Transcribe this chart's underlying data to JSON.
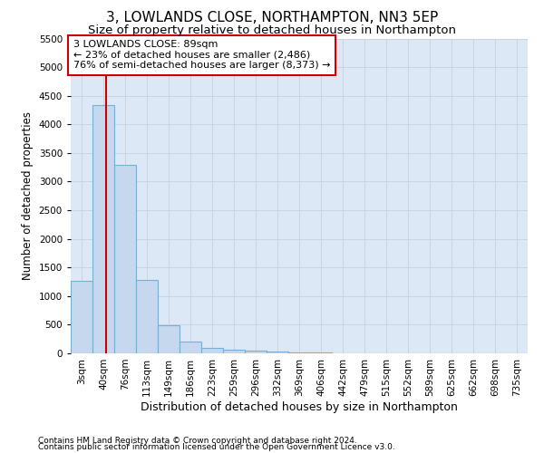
{
  "title1": "3, LOWLANDS CLOSE, NORTHAMPTON, NN3 5EP",
  "title2": "Size of property relative to detached houses in Northampton",
  "xlabel": "Distribution of detached houses by size in Northampton",
  "ylabel": "Number of detached properties",
  "bin_labels": [
    "3sqm",
    "40sqm",
    "76sqm",
    "113sqm",
    "149sqm",
    "186sqm",
    "223sqm",
    "259sqm",
    "296sqm",
    "332sqm",
    "369sqm",
    "406sqm",
    "442sqm",
    "479sqm",
    "515sqm",
    "552sqm",
    "589sqm",
    "625sqm",
    "662sqm",
    "698sqm",
    "735sqm"
  ],
  "bar_values": [
    1270,
    4330,
    3300,
    1280,
    490,
    210,
    90,
    60,
    55,
    30,
    20,
    15,
    0,
    0,
    0,
    0,
    0,
    0,
    0,
    0,
    0
  ],
  "bar_color": "#c5d8ee",
  "bar_edge_color": "#7aafd4",
  "vline_x_idx": 1,
  "annotation_line1": "3 LOWLANDS CLOSE: 89sqm",
  "annotation_line2": "← 23% of detached houses are smaller (2,486)",
  "annotation_line3": "76% of semi-detached houses are larger (8,373) →",
  "annotation_box_color": "#ffffff",
  "annotation_box_edge": "#cc0000",
  "vline_color": "#cc0000",
  "ylim": [
    0,
    5500
  ],
  "yticks": [
    0,
    500,
    1000,
    1500,
    2000,
    2500,
    3000,
    3500,
    4000,
    4500,
    5000,
    5500
  ],
  "grid_color": "#c8d4e0",
  "bg_color": "#dce8f5",
  "footer1": "Contains HM Land Registry data © Crown copyright and database right 2024.",
  "footer2": "Contains public sector information licensed under the Open Government Licence v3.0.",
  "title1_fontsize": 11,
  "title2_fontsize": 9.5,
  "xlabel_fontsize": 9,
  "ylabel_fontsize": 8.5,
  "tick_fontsize": 7.5,
  "annotation_fontsize": 8,
  "footer_fontsize": 6.5
}
